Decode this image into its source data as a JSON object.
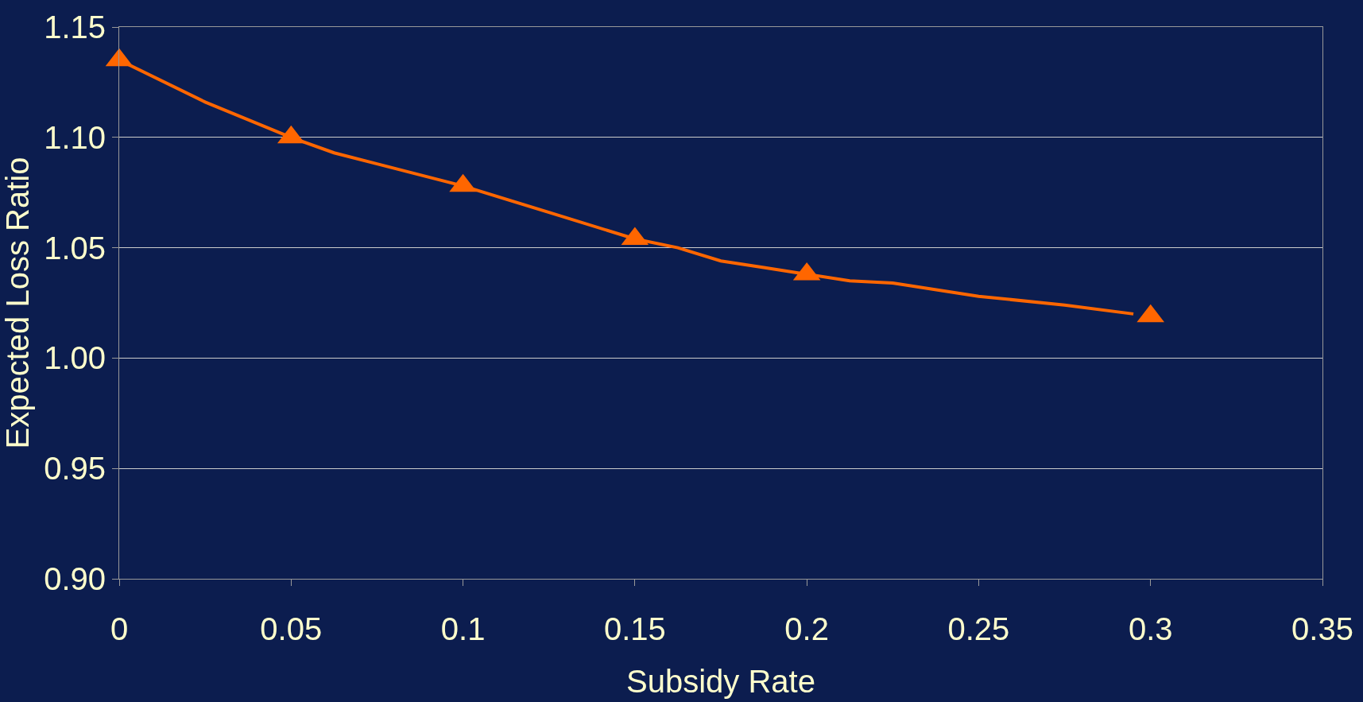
{
  "chart_data": {
    "type": "scatter",
    "xlabel": "Subsidy Rate",
    "ylabel": "Expected Loss Ratio",
    "xlim": [
      0,
      0.35
    ],
    "xticks": [
      0,
      0.05,
      0.1,
      0.15,
      0.2,
      0.25,
      0.3,
      0.35
    ],
    "ylim": [
      0.9,
      1.15
    ],
    "yticks": [
      {
        "value": 0.9,
        "label": "0.90"
      },
      {
        "value": 0.95,
        "label": "0.95"
      },
      {
        "value": 1.0,
        "label": "1.00"
      },
      {
        "value": 1.05,
        "label": "1.05"
      },
      {
        "value": 1.1,
        "label": "1.10"
      },
      {
        "value": 1.15,
        "label": "1.15"
      }
    ],
    "grid": "y",
    "series": [
      {
        "type": "line",
        "color": "#ff6600",
        "marker": "none",
        "x": [
          0,
          0.025,
          0.05,
          0.0625,
          0.075,
          0.1,
          0.125,
          0.15,
          0.1625,
          0.175,
          0.1875,
          0.2,
          0.2125,
          0.225,
          0.25,
          0.275,
          0.295
        ],
        "values": [
          1.135,
          1.116,
          1.1,
          1.093,
          1.088,
          1.078,
          1.066,
          1.054,
          1.05,
          1.044,
          1.041,
          1.038,
          1.035,
          1.034,
          1.028,
          1.024,
          1.02
        ]
      },
      {
        "color": "#ff6600",
        "marker": "triangle",
        "x": [
          0,
          0.05,
          0.1,
          0.15,
          0.2,
          0.3
        ],
        "values": [
          1.135,
          1.1,
          1.078,
          1.054,
          1.038,
          1.019
        ]
      }
    ]
  }
}
